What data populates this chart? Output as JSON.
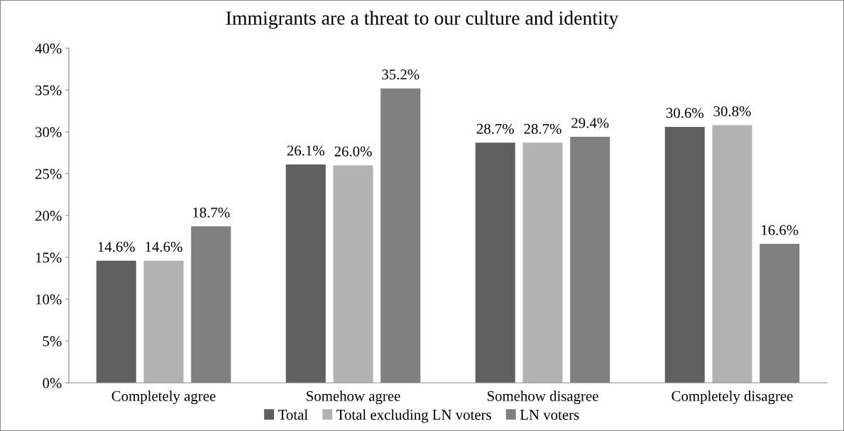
{
  "chart_data": {
    "type": "bar",
    "title": "Immigrants are a threat to our culture and identity",
    "categories": [
      "Completely agree",
      "Somehow agree",
      "Somehow disagree",
      "Completely disagree"
    ],
    "series": [
      {
        "name": "Total",
        "color": "#5f5f5f",
        "values": [
          14.6,
          26.1,
          28.7,
          30.6
        ],
        "value_labels": [
          "14.6%",
          "26.1%",
          "28.7%",
          "30.6%"
        ]
      },
      {
        "name": "Total excluding LN voters",
        "color": "#b2b2b2",
        "values": [
          14.6,
          26.0,
          28.7,
          30.8
        ],
        "value_labels": [
          "14.6%",
          "26.0%",
          "28.7%",
          "30.8%"
        ]
      },
      {
        "name": "LN voters",
        "color": "#808080",
        "values": [
          18.7,
          35.2,
          29.4,
          16.6
        ],
        "value_labels": [
          "18.7%",
          "35.2%",
          "29.4%",
          "16.6%"
        ]
      }
    ],
    "ylim": [
      0,
      40
    ],
    "yticks": [
      {
        "value": 0,
        "label": "0%"
      },
      {
        "value": 5,
        "label": "5%"
      },
      {
        "value": 10,
        "label": "10%"
      },
      {
        "value": 15,
        "label": "15%"
      },
      {
        "value": 20,
        "label": "20%"
      },
      {
        "value": 25,
        "label": "25%"
      },
      {
        "value": 30,
        "label": "30%"
      },
      {
        "value": 35,
        "label": "35%"
      },
      {
        "value": 40,
        "label": "40%"
      }
    ],
    "grid": false,
    "legend": "bottom"
  }
}
